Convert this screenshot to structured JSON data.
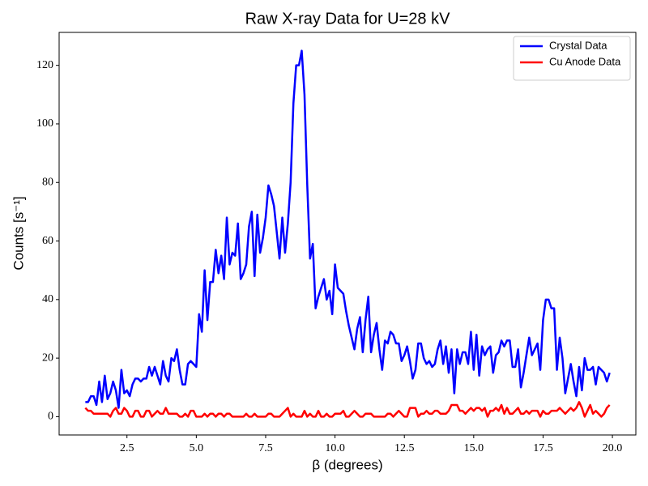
{
  "chart_data": {
    "type": "line",
    "title": "Raw X-ray Data for U=28 kV",
    "x_label": "β (degrees)",
    "y_label": "Counts [s⁻¹]",
    "x": [
      1,
      1.1,
      1.2,
      1.3,
      1.4,
      1.5,
      1.6,
      1.7,
      1.8,
      1.9,
      2,
      2.1,
      2.2,
      2.3,
      2.4,
      2.5,
      2.6,
      2.7,
      2.8,
      2.9,
      3,
      3.1,
      3.2,
      3.3,
      3.4,
      3.5,
      3.6,
      3.7,
      3.8,
      3.9,
      4,
      4.1,
      4.2,
      4.3,
      4.4,
      4.5,
      4.6,
      4.7,
      4.8,
      4.9,
      5,
      5.1,
      5.2,
      5.3,
      5.4,
      5.5,
      5.6,
      5.7,
      5.8,
      5.9,
      6,
      6.1,
      6.2,
      6.3,
      6.4,
      6.5,
      6.6,
      6.7,
      6.8,
      6.9,
      7,
      7.1,
      7.2,
      7.3,
      7.4,
      7.5,
      7.6,
      7.7,
      7.8,
      7.9,
      8,
      8.1,
      8.2,
      8.3,
      8.4,
      8.5,
      8.6,
      8.7,
      8.8,
      8.9,
      9,
      9.1,
      9.2,
      9.3,
      9.4,
      9.5,
      9.6,
      9.7,
      9.8,
      9.9,
      10,
      10.1,
      10.2,
      10.3,
      10.4,
      10.5,
      10.6,
      10.7,
      10.8,
      10.9,
      11,
      11.1,
      11.2,
      11.3,
      11.4,
      11.5,
      11.6,
      11.7,
      11.8,
      11.9,
      12,
      12.1,
      12.2,
      12.3,
      12.4,
      12.5,
      12.6,
      12.7,
      12.8,
      12.9,
      13,
      13.1,
      13.2,
      13.3,
      13.4,
      13.5,
      13.6,
      13.7,
      13.8,
      13.9,
      14,
      14.1,
      14.2,
      14.3,
      14.4,
      14.5,
      14.6,
      14.7,
      14.8,
      14.9,
      15,
      15.1,
      15.2,
      15.3,
      15.4,
      15.5,
      15.6,
      15.7,
      15.8,
      15.9,
      16,
      16.1,
      16.2,
      16.3,
      16.4,
      16.5,
      16.6,
      16.7,
      16.8,
      16.9,
      17,
      17.1,
      17.2,
      17.3,
      17.4,
      17.5,
      17.6,
      17.7,
      17.8,
      17.9,
      18,
      18.1,
      18.2,
      18.3,
      18.4,
      18.5,
      18.6,
      18.7,
      18.8,
      18.9,
      19,
      19.1,
      19.2,
      19.3,
      19.4,
      19.5,
      19.6,
      19.7,
      19.8,
      19.9
    ],
    "series": [
      {
        "name": "Crystal Data",
        "color": "#0000ff",
        "values": [
          5,
          5,
          7,
          7,
          4,
          12,
          5,
          14,
          6,
          8,
          12,
          9,
          3,
          16,
          8,
          9,
          7,
          11,
          13,
          13,
          12,
          13,
          13,
          17,
          14,
          17,
          14,
          11,
          19,
          14,
          12,
          20,
          19,
          23,
          16,
          11,
          11,
          18,
          19,
          18,
          17,
          35,
          29,
          50,
          33,
          46,
          46,
          57,
          49,
          55,
          47,
          68,
          52,
          56,
          55,
          66,
          47,
          49,
          52,
          65,
          70,
          48,
          69,
          56,
          61,
          68,
          79,
          76,
          72,
          63,
          54,
          68,
          56,
          66,
          80,
          107,
          120,
          120,
          125,
          110,
          79,
          54,
          59,
          37,
          41,
          44,
          47,
          40,
          43,
          35,
          52,
          44,
          43,
          42,
          36,
          31,
          27,
          23,
          30,
          34,
          22,
          33,
          41,
          22,
          28,
          32,
          23,
          16,
          26,
          25,
          29,
          28,
          25,
          25,
          19,
          21,
          24,
          19,
          13,
          16,
          25,
          25,
          20,
          18,
          19,
          17,
          18,
          23,
          26,
          18,
          24,
          15,
          23,
          8,
          23,
          18,
          22,
          22,
          18,
          29,
          16,
          28,
          14,
          24,
          21,
          23,
          24,
          15,
          21,
          22,
          26,
          24,
          26,
          26,
          17,
          17,
          23,
          10,
          15,
          21,
          27,
          21,
          23,
          25,
          16,
          33,
          40,
          40,
          37,
          37,
          16,
          27,
          20,
          8,
          13,
          18,
          12,
          7,
          17,
          9,
          20,
          16,
          16,
          17,
          11,
          17,
          16,
          15,
          12,
          15
        ]
      },
      {
        "name": "Cu Anode Data",
        "color": "#ff0000",
        "values": [
          3,
          2,
          2,
          1,
          1,
          1,
          1,
          1,
          1,
          0,
          2,
          3,
          1,
          1,
          3,
          2,
          0,
          0,
          2,
          2,
          0,
          0,
          2,
          2,
          0,
          1,
          2,
          1,
          1,
          3,
          1,
          1,
          1,
          1,
          0,
          0,
          1,
          0,
          2,
          2,
          0,
          0,
          0,
          1,
          0,
          1,
          1,
          0,
          1,
          1,
          0,
          1,
          1,
          0,
          0,
          0,
          0,
          0,
          1,
          0,
          0,
          1,
          0,
          0,
          0,
          0,
          1,
          1,
          0,
          0,
          0,
          1,
          2,
          3,
          0,
          1,
          0,
          0,
          0,
          2,
          0,
          1,
          0,
          0,
          2,
          0,
          0,
          1,
          0,
          0,
          1,
          1,
          1,
          2,
          0,
          0,
          1,
          2,
          1,
          0,
          0,
          1,
          1,
          1,
          0,
          0,
          0,
          0,
          0,
          1,
          1,
          0,
          1,
          2,
          1,
          0,
          0,
          3,
          3,
          3,
          0,
          1,
          1,
          2,
          1,
          1,
          2,
          2,
          1,
          1,
          1,
          2,
          4,
          4,
          4,
          2,
          2,
          1,
          2,
          3,
          2,
          3,
          3,
          2,
          3,
          0,
          2,
          2,
          3,
          2,
          4,
          1,
          3,
          1,
          1,
          2,
          3,
          1,
          1,
          2,
          1,
          2,
          2,
          2,
          0,
          2,
          1,
          1,
          2,
          2,
          2,
          3,
          2,
          1,
          2,
          3,
          2,
          3,
          5,
          3,
          0,
          2,
          4,
          1,
          2,
          1,
          0,
          1,
          3,
          4
        ]
      }
    ],
    "xlim": [
      0.055,
      20.845
    ],
    "ylim": [
      -6.25,
      131.25
    ],
    "xticks": [
      2.5,
      {
        "value": 5,
        "label": "5.0"
      },
      7.5,
      {
        "value": 10,
        "label": "10.0"
      },
      12.5,
      {
        "value": 15,
        "label": "15.0"
      },
      17.5,
      {
        "value": 20,
        "label": "20.0"
      }
    ],
    "yticks": [
      0,
      20,
      40,
      60,
      80,
      100,
      120
    ],
    "grid": false,
    "legend": "upper right"
  }
}
